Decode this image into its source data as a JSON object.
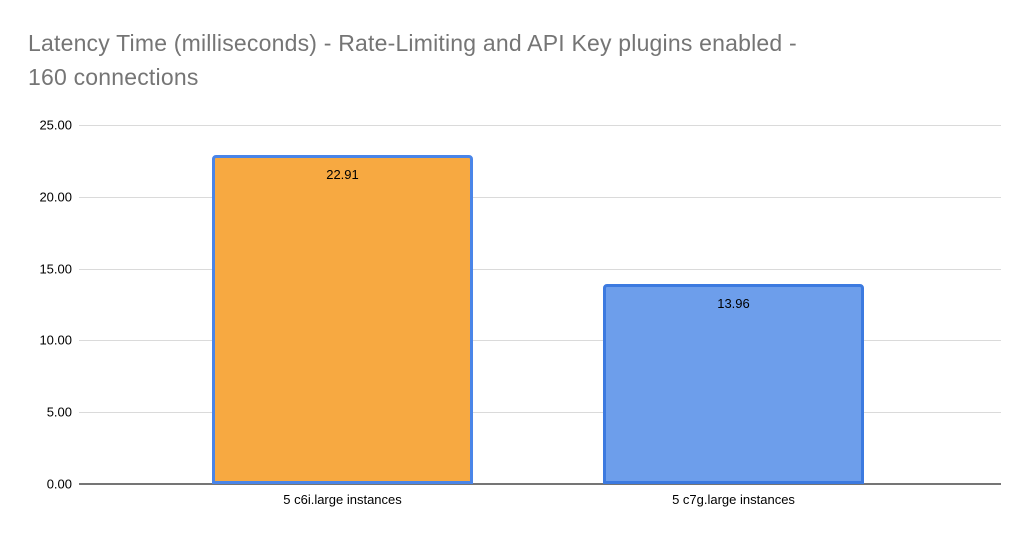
{
  "title_lines": [
    "Latency Time (milliseconds) - Rate-Limiting and API Key plugins enabled -",
    "160 connections"
  ],
  "colors": {
    "title_text": "#757575",
    "gridline": "#dadada",
    "axis_line": "#757575",
    "label_text": "#000000"
  },
  "chart_data": {
    "type": "bar",
    "title": "Latency Time (milliseconds) - Rate-Limiting and API Key plugins enabled - 160 connections",
    "categories": [
      "5 c6i.large instances",
      "5 c7g.large instances"
    ],
    "values": [
      22.91,
      13.96
    ],
    "value_labels": [
      "22.91",
      "13.96"
    ],
    "series": [
      {
        "name": "5 c6i.large instances",
        "value": 22.91,
        "fill": "#f7a941",
        "border": "#4a85e8"
      },
      {
        "name": "5 c7g.large instances",
        "value": 13.96,
        "fill": "#6d9eeb",
        "border": "#3c7ae0"
      }
    ],
    "xlabel": "",
    "ylabel": "",
    "ylim": [
      0,
      25
    ],
    "ytick_step": 5,
    "yticks": [
      "0.00",
      "5.00",
      "10.00",
      "15.00",
      "20.00",
      "25.00"
    ],
    "grid": true,
    "legend": "none",
    "value_labels_position": "inside-top"
  }
}
